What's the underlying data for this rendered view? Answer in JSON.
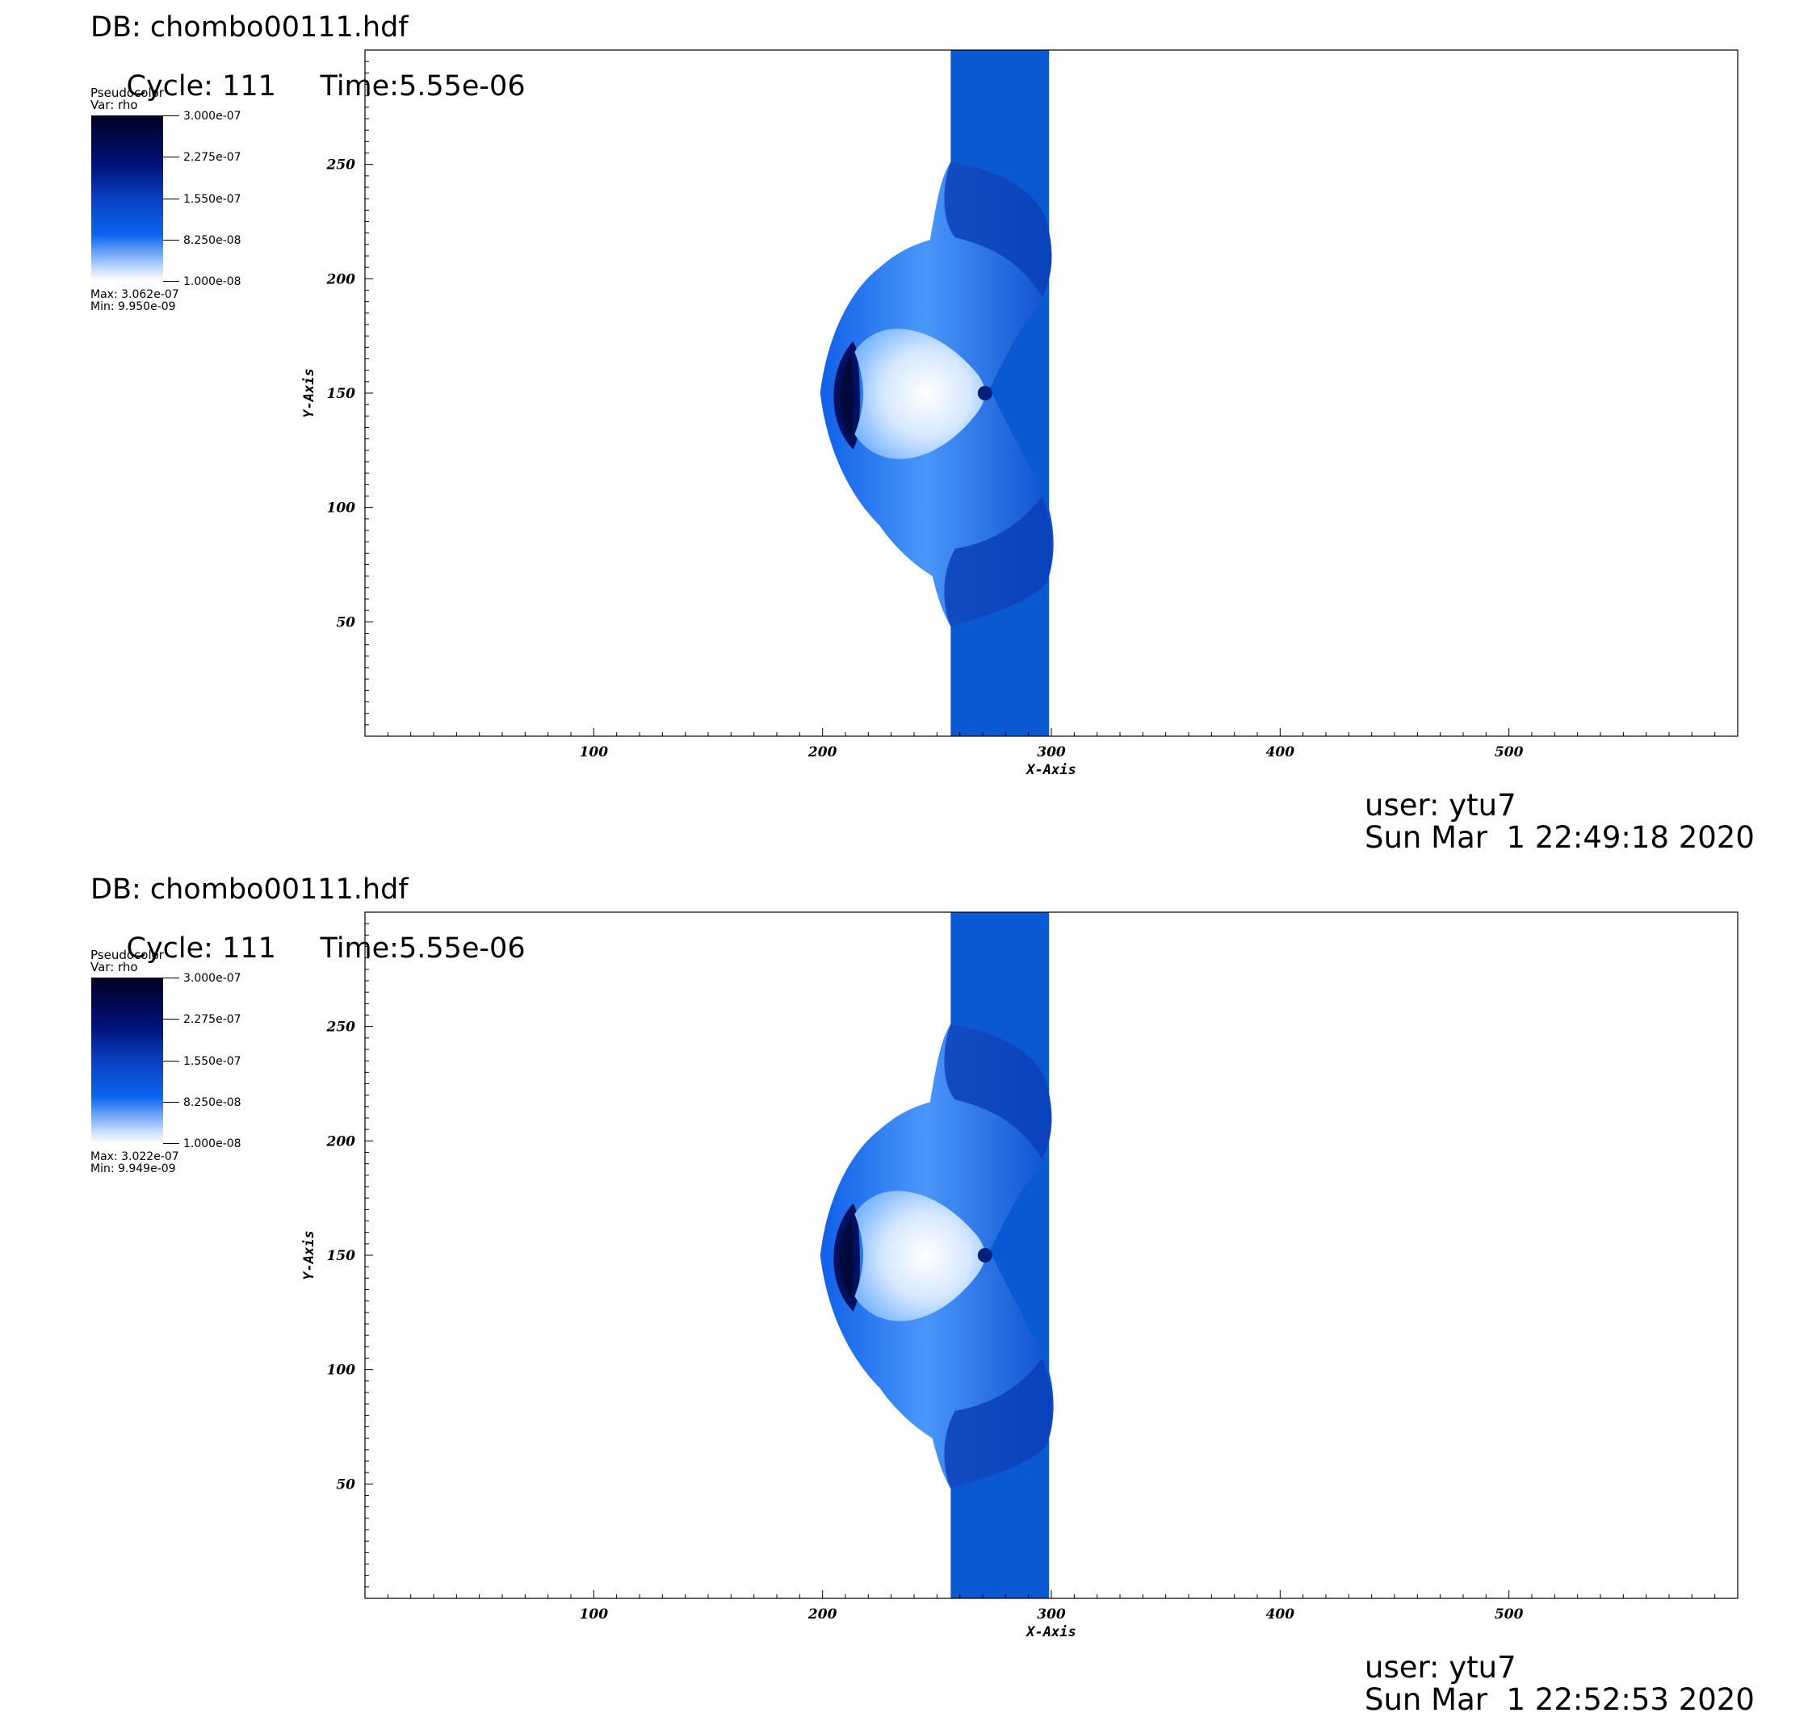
{
  "colors": {
    "background": "#ffffff",
    "stream": "#0a58d2",
    "dark": "#000020",
    "mid": "#0a64f0",
    "light": "#ffffff"
  },
  "plots": [
    {
      "db": "DB: chombo00111.hdf",
      "cycle": "Cycle: 111",
      "time": "Time:5.55e-06",
      "legend": {
        "plot_type": "Pseudocolor",
        "var": "Var: rho",
        "ticks": [
          "3.000e-07",
          "2.275e-07",
          "1.550e-07",
          "8.250e-08",
          "1.000e-08"
        ],
        "max": "Max:  3.062e-07",
        "min": "Min:  9.950e-09"
      },
      "user": "user: ytu7",
      "date": "Sun Mar  1 22:49:18 2020"
    },
    {
      "db": "DB: chombo00111.hdf",
      "cycle": "Cycle: 111",
      "time": "Time:5.55e-06",
      "legend": {
        "plot_type": "Pseudocolor",
        "var": "Var: rho",
        "ticks": [
          "3.000e-07",
          "2.275e-07",
          "1.550e-07",
          "8.250e-08",
          "1.000e-08"
        ],
        "max": "Max:  3.022e-07",
        "min": "Min:  9.949e-09"
      },
      "user": "user: ytu7",
      "date": "Sun Mar  1 22:52:53 2020"
    }
  ],
  "chart_data": [
    {
      "type": "heatmap",
      "xlabel": "X-Axis",
      "ylabel": "Y-Axis",
      "xlim": [
        0,
        600
      ],
      "ylim": [
        0,
        300
      ],
      "x_ticks": [
        100,
        200,
        300,
        400,
        500
      ],
      "y_ticks": [
        50,
        100,
        150,
        200,
        250
      ],
      "colorbar": {
        "min": 1e-08,
        "max": 3e-07
      },
      "stream_x_range": [
        256,
        299
      ]
    },
    {
      "type": "heatmap",
      "xlabel": "X-Axis",
      "ylabel": "Y-Axis",
      "xlim": [
        0,
        600
      ],
      "ylim": [
        0,
        300
      ],
      "x_ticks": [
        100,
        200,
        300,
        400,
        500
      ],
      "y_ticks": [
        50,
        100,
        150,
        200,
        250
      ],
      "colorbar": {
        "min": 1e-08,
        "max": 3e-07
      },
      "stream_x_range": [
        256,
        299
      ]
    }
  ]
}
